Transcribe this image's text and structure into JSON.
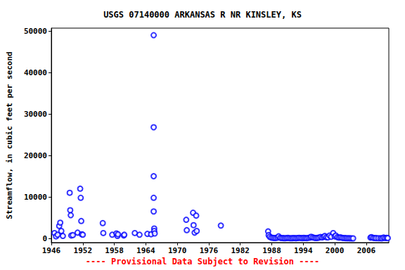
{
  "chart_data": {
    "type": "scatter",
    "title": "USGS 07140000 ARKANSAS R NR KINSLEY, KS",
    "y_label": "Streamflow, in cubic feet per second",
    "annotation": "---- Provisional Data Subject to Revision ----",
    "color": "#0000ff",
    "marker": "open_circle",
    "grid": false,
    "xlim": [
      1946,
      2010.3
    ],
    "xticks": [
      1946,
      1952,
      1958,
      1964,
      1970,
      1976,
      1982,
      1988,
      1994,
      2000,
      2006
    ],
    "ylim": [
      -1000,
      50700
    ],
    "yticks": [
      0,
      10000,
      20000,
      30000,
      40000,
      50000
    ],
    "x": [
      1946.6,
      1946.9,
      1947.2,
      1947.5,
      1947.7,
      1947.9,
      1948.2,
      1949.5,
      1949.6,
      1949.7,
      1949.8,
      1950.1,
      1951.0,
      1951.5,
      1951.6,
      1951.7,
      1951.8,
      1952.0,
      1955.8,
      1955.9,
      1957.6,
      1958.4,
      1958.6,
      1958.7,
      1959.8,
      1959.9,
      1961.9,
      1962.8,
      1964.3,
      1965.0,
      1965.5,
      1965.5,
      1965.5,
      1965.5,
      1965.5,
      1965.6,
      1965.6,
      1965.7,
      1971.7,
      1971.8,
      1973.0,
      1973.1,
      1973.3,
      1973.6,
      1973.7,
      1978.3,
      1987.3,
      1987.4,
      1987.6,
      1987.9,
      1988.2,
      1988.5,
      1988.8,
      1989.1,
      1989.3,
      1989.6,
      1989.9,
      1990.2,
      1990.5,
      1990.8,
      1991.1,
      1991.4,
      1991.7,
      1992.0,
      1992.3,
      1992.6,
      1992.9,
      1993.2,
      1993.5,
      1993.8,
      1994.1,
      1994.4,
      1994.7,
      1995.0,
      1995.3,
      1995.5,
      1995.8,
      1996.1,
      1996.4,
      1996.7,
      1997.0,
      1997.3,
      1997.6,
      1997.9,
      1998.1,
      1998.4,
      1998.7,
      1999.0,
      1999.3,
      1999.7,
      2000.0,
      2000.2,
      2000.5,
      2000.8,
      2001.1,
      2001.4,
      2001.7,
      2002.0,
      2002.3,
      2002.6,
      2002.9,
      2003.2,
      2003.5,
      2006.8,
      2007.0,
      2007.3,
      2007.6,
      2007.9,
      2008.3,
      2008.7,
      2009.0,
      2009.3,
      2009.6,
      2009.9,
      2010.1
    ],
    "values": [
      1300,
      500,
      900,
      3000,
      3800,
      1800,
      600,
      11000,
      6800,
      5600,
      700,
      800,
      1400,
      12000,
      9800,
      4200,
      1000,
      900,
      3700,
      1300,
      900,
      1200,
      600,
      1000,
      700,
      900,
      1300,
      900,
      1100,
      1000,
      49000,
      26800,
      15000,
      9800,
      6500,
      2400,
      1800,
      1200,
      4500,
      2000,
      6200,
      3200,
      1400,
      5500,
      1800,
      3100,
      1700,
      800,
      400,
      200,
      150,
      100,
      120,
      200,
      500,
      150,
      100,
      80,
      60,
      90,
      120,
      70,
      50,
      80,
      100,
      60,
      90,
      150,
      110,
      80,
      120,
      90,
      70,
      150,
      200,
      400,
      250,
      150,
      100,
      130,
      200,
      350,
      250,
      400,
      600,
      300,
      250,
      700,
      400,
      1300,
      500,
      700,
      300,
      200,
      250,
      150,
      100,
      80,
      60,
      50,
      40,
      30,
      20,
      200,
      300,
      150,
      100,
      80,
      60,
      50,
      40,
      200,
      100,
      150,
      80
    ]
  }
}
